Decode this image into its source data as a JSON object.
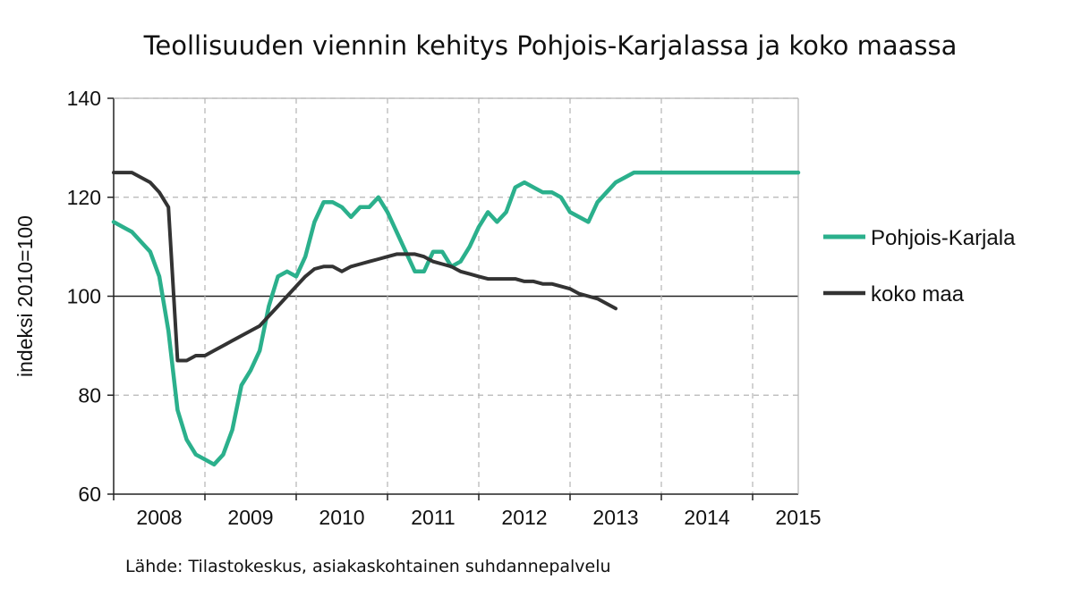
{
  "title": "Teollisuuden viennin kehitys Pohjois-Karjalassa ja koko maassa",
  "source": "Lähde: Tilastokeskus, asiakaskohtainen suhdannepalvelu",
  "chart_data": {
    "type": "line",
    "title": "Teollisuuden viennin kehitys Pohjois-Karjalassa ja koko maassa",
    "xlabel": "",
    "ylabel": "indeksi 2010=100",
    "xlim": [
      2008.0,
      2015.5
    ],
    "ylim": [
      60,
      140
    ],
    "y_ticks": [
      60,
      80,
      100,
      120,
      140
    ],
    "x_ticks": [
      "2008",
      "2009",
      "2010",
      "2011",
      "2012",
      "2013",
      "2014",
      "2015"
    ],
    "grid": true,
    "reference_line": 100,
    "legend_position": "right",
    "series": [
      {
        "name": "Pohjois-Karjala",
        "color": "#2bb08c",
        "x": [
          2008.0,
          2008.1,
          2008.2,
          2008.3,
          2008.4,
          2008.5,
          2008.6,
          2008.7,
          2008.8,
          2008.9,
          2009.0,
          2009.1,
          2009.2,
          2009.3,
          2009.4,
          2009.5,
          2009.6,
          2009.7,
          2009.8,
          2009.9,
          2010.0,
          2010.1,
          2010.2,
          2010.3,
          2010.4,
          2010.5,
          2010.6,
          2010.7,
          2010.8,
          2010.9,
          2011.0,
          2011.1,
          2011.2,
          2011.3,
          2011.4,
          2011.5,
          2011.6,
          2011.7,
          2011.8,
          2011.9,
          2012.0,
          2012.1,
          2012.2,
          2012.3,
          2012.4,
          2012.5,
          2012.6,
          2012.7,
          2012.8,
          2012.9,
          2013.0,
          2013.1,
          2013.2,
          2013.3,
          2013.4,
          2013.5,
          2013.6,
          2013.7,
          2013.8,
          2013.9,
          2014.0,
          2014.1,
          2014.2,
          2014.3,
          2014.4,
          2014.5,
          2014.6,
          2014.7,
          2014.8,
          2014.9,
          2015.0,
          2015.1,
          2015.2,
          2015.3,
          2015.4,
          2015.5
        ],
        "values": [
          115,
          114,
          113,
          111,
          109,
          104,
          93,
          77,
          71,
          68,
          67,
          66,
          68,
          73,
          82,
          85,
          89,
          98,
          104,
          105,
          104,
          108,
          115,
          119,
          119,
          118,
          116,
          118,
          118,
          120,
          117,
          113,
          109,
          105,
          105,
          109,
          109,
          106,
          107,
          110,
          114,
          117,
          115,
          117,
          122,
          123,
          122,
          121,
          121,
          120,
          117,
          116,
          115,
          119,
          121,
          123,
          124,
          125,
          125,
          125,
          125,
          125,
          125,
          125,
          125,
          125,
          125,
          125,
          125,
          125,
          125,
          125,
          125,
          125,
          125,
          125
        ]
      },
      {
        "name": "koko maa",
        "color": "#333333",
        "x": [
          2008.0,
          2008.1,
          2008.2,
          2008.3,
          2008.4,
          2008.5,
          2008.6,
          2008.7,
          2008.8,
          2008.9,
          2009.0,
          2009.1,
          2009.2,
          2009.3,
          2009.4,
          2009.5,
          2009.6,
          2009.7,
          2009.8,
          2009.9,
          2010.0,
          2010.1,
          2010.2,
          2010.3,
          2010.4,
          2010.5,
          2010.6,
          2010.7,
          2010.8,
          2010.9,
          2011.0,
          2011.1,
          2011.2,
          2011.3,
          2011.4,
          2011.5,
          2011.6,
          2011.7,
          2011.8,
          2011.9,
          2012.0,
          2012.1,
          2012.2,
          2012.3,
          2012.4,
          2012.5,
          2012.6,
          2012.7,
          2012.8,
          2012.9,
          2013.0,
          2013.1,
          2013.2,
          2013.3,
          2013.4,
          2013.5
        ],
        "values": [
          125,
          125,
          125,
          124,
          123,
          121,
          118,
          87,
          87,
          88,
          88,
          89,
          90,
          91,
          92,
          93,
          94,
          96,
          98,
          100,
          102,
          104,
          105.5,
          106,
          106,
          105,
          106,
          106.5,
          107,
          107.5,
          108,
          108.5,
          108.5,
          108.5,
          108,
          107,
          106.5,
          106,
          105,
          104.5,
          104,
          103.5,
          103.5,
          103.5,
          103.5,
          103,
          103,
          102.5,
          102.5,
          102,
          101.5,
          100.5,
          100,
          99.5,
          98.5,
          97.5
        ]
      }
    ]
  }
}
